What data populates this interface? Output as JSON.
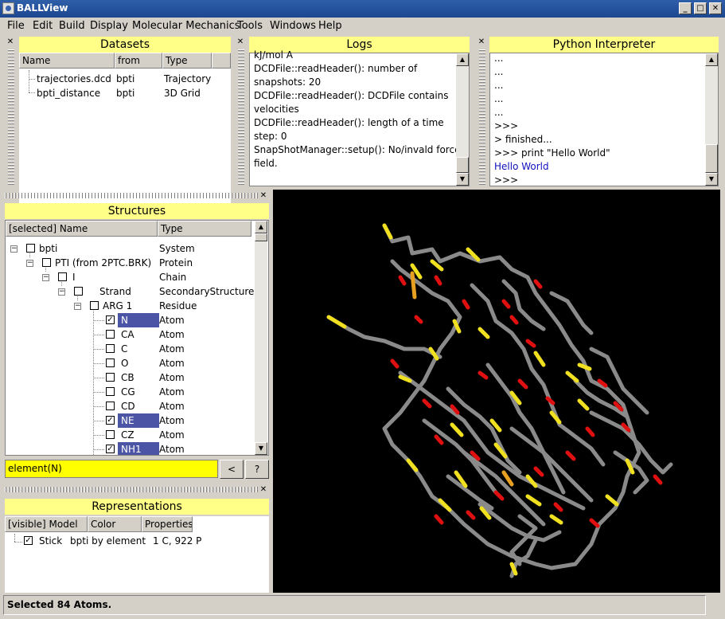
{
  "window": {
    "title": "BALLView"
  },
  "menubar": [
    "File",
    "Edit",
    "Build",
    "Display",
    "Molecular Mechanics",
    "Tools",
    "Windows",
    "Help"
  ],
  "datasets": {
    "title": "Datasets",
    "columns": [
      "Name",
      "from",
      "Type"
    ],
    "rows": [
      {
        "name": "trajectories.dcd",
        "from": "bpti",
        "type": "Trajectory"
      },
      {
        "name": "bpti_distance",
        "from": "bpti",
        "type": "3D Grid"
      }
    ]
  },
  "logs": {
    "title": "Logs",
    "lines": [
      "kJ/mol A",
      "DCDFile::readHeader(): number of",
      "snapshots: 20",
      "DCDFile::readHeader(): DCDFile contains",
      "velocities",
      "DCDFile::readHeader(): length of a time",
      "step: 0",
      "SnapShotManager::setup(): No/invald force",
      "field."
    ]
  },
  "python": {
    "title": "Python Interpreter",
    "lines": [
      "...",
      "...",
      "...",
      "...",
      "...",
      ">>>",
      "> finished...",
      ">>> print \"Hello World\"",
      "Hello World",
      ">>>"
    ]
  },
  "structures": {
    "title": "Structures",
    "columns": [
      "[selected] Name",
      "Type"
    ],
    "rows": [
      {
        "name": "bpti",
        "type": "System",
        "checked": false,
        "selected": false
      },
      {
        "name": "PTI (from 2PTC.BRK)",
        "type": "Protein",
        "checked": false,
        "selected": false
      },
      {
        "name": "I",
        "type": "Chain",
        "checked": false,
        "selected": false
      },
      {
        "name": "Strand",
        "type": "SecondaryStructure",
        "checked": false,
        "selected": false
      },
      {
        "name": "ARG 1",
        "type": "Residue",
        "checked": false,
        "selected": false
      },
      {
        "name": "N",
        "type": "Atom",
        "checked": true,
        "selected": true
      },
      {
        "name": "CA",
        "type": "Atom",
        "checked": false,
        "selected": false
      },
      {
        "name": "C",
        "type": "Atom",
        "checked": false,
        "selected": false
      },
      {
        "name": "O",
        "type": "Atom",
        "checked": false,
        "selected": false
      },
      {
        "name": "CB",
        "type": "Atom",
        "checked": false,
        "selected": false
      },
      {
        "name": "CG",
        "type": "Atom",
        "checked": false,
        "selected": false
      },
      {
        "name": "CD",
        "type": "Atom",
        "checked": false,
        "selected": false
      },
      {
        "name": "NE",
        "type": "Atom",
        "checked": true,
        "selected": true
      },
      {
        "name": "CZ",
        "type": "Atom",
        "checked": false,
        "selected": false
      },
      {
        "name": "NH1",
        "type": "Atom",
        "checked": true,
        "selected": true
      }
    ],
    "search_value": "element(N)",
    "back_label": "<",
    "help_label": "?"
  },
  "representations": {
    "title": "Representations",
    "columns": [
      "[visible] Model",
      "Color",
      "Properties"
    ],
    "rows": [
      {
        "model": "Stick",
        "color": "bpti by element",
        "properties": "1 C, 922 P",
        "checked": true
      }
    ]
  },
  "status": {
    "text": "Selected 84 Atoms."
  },
  "colors": {
    "panel_title": "#ffff88",
    "selection": "#4c55a5",
    "titlebar": "#1c4690",
    "search_bg": "#ffff00"
  }
}
